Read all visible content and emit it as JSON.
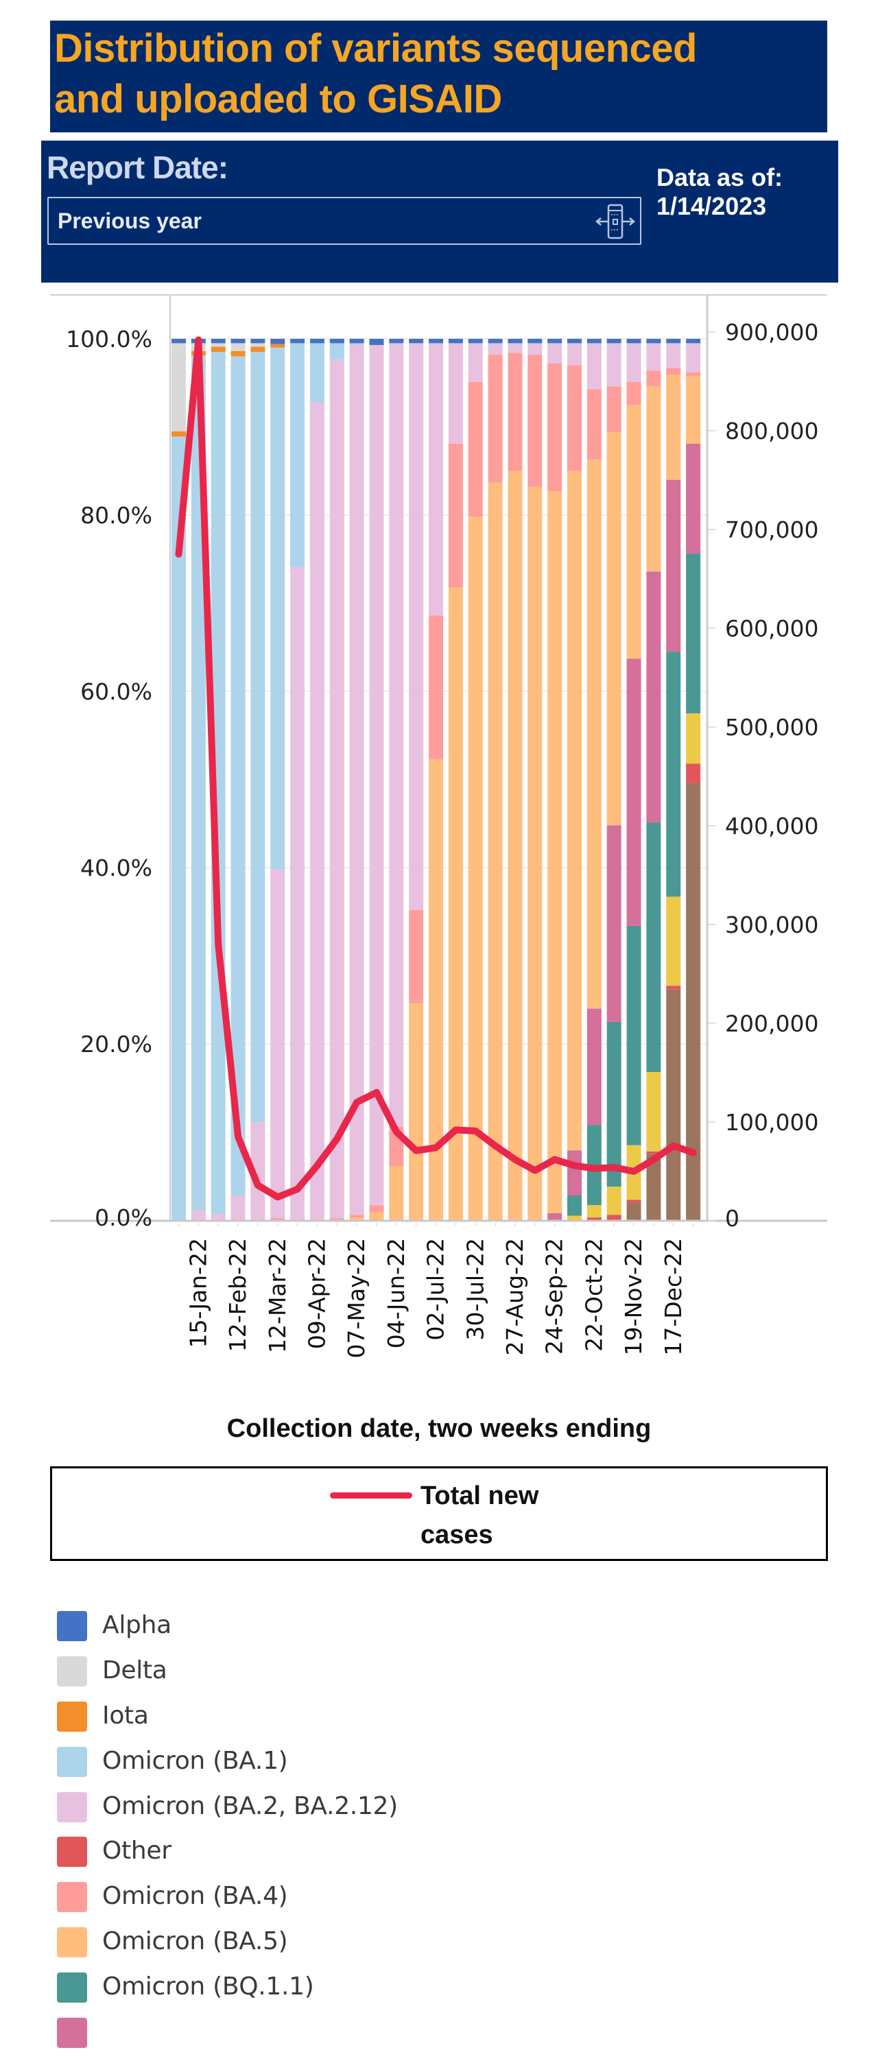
{
  "title": "Distribution of variants sequenced and uploaded to GISAID",
  "title_lines": [
    "Distribution of variants sequenced",
    "and uploaded to GISAID"
  ],
  "filter": {
    "label": "Report Date:",
    "value": "Previous year",
    "icon": "range-slider-icon",
    "as_of_label": "Data as of:",
    "as_of_value": "1/14/2023"
  },
  "colors": {
    "header_bg": "#012a6c",
    "title_text": "#f6a623",
    "line": "#e8274b"
  },
  "chart_data": {
    "type": "bar",
    "stacked": true,
    "combo_line": true,
    "xlabel": "Collection date, two weeks ending",
    "ylim": [
      0,
      100
    ],
    "y2lim": [
      0,
      900000
    ],
    "y_ticks": [
      "0.0%",
      "20.0%",
      "40.0%",
      "60.0%",
      "80.0%",
      "100.0%"
    ],
    "y2_ticks": [
      "0",
      "100,000",
      "200,000",
      "300,000",
      "400,000",
      "500,000",
      "600,000",
      "700,000",
      "800,000",
      "900,000"
    ],
    "x_tick_labels": [
      "15-Jan-22",
      "12-Feb-22",
      "12-Mar-22",
      "09-Apr-22",
      "07-May-22",
      "04-Jun-22",
      "02-Jul-22",
      "30-Jul-22",
      "27-Aug-22",
      "24-Sep-22",
      "22-Oct-22",
      "19-Nov-22",
      "17-Dec-22"
    ],
    "x_tick_every": 2,
    "x_tick_offset": 1,
    "bar_count": 27,
    "grid": true,
    "legend_position": "bottom",
    "series": [
      {
        "name": "",
        "color": "#9c755f",
        "values": [
          0,
          0,
          0,
          0,
          0,
          0,
          0,
          0,
          0,
          0,
          0,
          0,
          0,
          0,
          0,
          0,
          0,
          0,
          0,
          0,
          0,
          0,
          0,
          2.0,
          7.5,
          26.2,
          49.6
        ]
      },
      {
        "name": "Other",
        "color": "#e15759",
        "values": [
          0,
          0,
          0,
          0,
          0,
          0,
          0,
          0,
          0,
          0,
          0,
          0,
          0,
          0,
          0,
          0,
          0,
          0,
          0,
          0,
          0,
          0.3,
          0.6,
          0.3,
          0.3,
          0.4,
          2.2
        ]
      },
      {
        "name": "",
        "color": "#edc948",
        "values": [
          0,
          0,
          0,
          0,
          0,
          0,
          0,
          0,
          0,
          0,
          0,
          0,
          0,
          0,
          0,
          0,
          0,
          0,
          0,
          0,
          0.5,
          1.4,
          3.2,
          6.2,
          9.0,
          10.1,
          5.7
        ]
      },
      {
        "name": "Omicron (BQ.1.1)",
        "color": "#499894",
        "values": [
          0,
          0,
          0,
          0,
          0,
          0,
          0,
          0,
          0,
          0,
          0,
          0,
          0,
          0,
          0,
          0,
          0,
          0,
          0,
          0,
          2.3,
          9.1,
          18.7,
          24.9,
          28.3,
          27.8,
          18.1
        ]
      },
      {
        "name": "",
        "color": "#d4709a",
        "values": [
          0,
          0,
          0,
          0,
          0,
          0,
          0,
          0,
          0,
          0,
          0,
          0,
          0,
          0,
          0,
          0,
          0,
          0,
          0,
          0.8,
          5.1,
          13.2,
          22.3,
          30.3,
          28.5,
          19.5,
          12.5
        ]
      },
      {
        "name": "Omicron (BA.5)",
        "color": "#ffbe7d",
        "values": [
          0,
          0,
          0,
          0,
          0,
          0,
          0,
          0,
          0,
          0.3,
          0.9,
          6.1,
          24.6,
          52.3,
          71.8,
          79.8,
          83.7,
          85.0,
          83.2,
          81.9,
          77.1,
          62.3,
          44.6,
          28.8,
          21.0,
          11.9,
          7.7
        ]
      },
      {
        "name": "Omicron (BA.4)",
        "color": "#ff9d9a",
        "values": [
          0,
          0,
          0,
          0,
          0,
          0.2,
          0,
          0,
          0.2,
          0.3,
          0.8,
          4.5,
          10.6,
          16.3,
          16.3,
          15.3,
          14.5,
          13.4,
          15.0,
          14.5,
          12.0,
          8.0,
          5.2,
          2.6,
          1.8,
          0.8,
          0.4
        ]
      },
      {
        "name": "Omicron (BA.2, BA.2.12)",
        "color": "#e8c1e0",
        "values": [
          0,
          1.1,
          0.7,
          2.8,
          11.1,
          39.6,
          74.1,
          92.8,
          97.5,
          98.7,
          97.6,
          88.9,
          64.3,
          30.9,
          11.4,
          4.4,
          1.3,
          1.1,
          1.3,
          2.3,
          2.5,
          5.2,
          4.9,
          4.4,
          3.1,
          2.8,
          3.3
        ]
      },
      {
        "name": "Omicron (BA.1)",
        "color": "#aed4ec",
        "values": [
          88.9,
          97.0,
          97.8,
          95.2,
          87.4,
          59.2,
          25.4,
          6.7,
          1.8,
          0.2,
          0,
          0,
          0,
          0,
          0,
          0,
          0,
          0,
          0,
          0,
          0,
          0,
          0,
          0,
          0,
          0,
          0
        ]
      },
      {
        "name": "Iota",
        "color": "#f28e2b",
        "values": [
          0.6,
          0.5,
          0.6,
          0.6,
          0.6,
          0.4,
          0,
          0,
          0,
          0,
          0,
          0,
          0,
          0,
          0,
          0,
          0,
          0,
          0,
          0,
          0,
          0,
          0,
          0,
          0,
          0,
          0
        ]
      },
      {
        "name": "Delta",
        "color": "#d9d9d9",
        "values": [
          10.0,
          0.9,
          0.4,
          0.9,
          0.4,
          0,
          0,
          0,
          0,
          0,
          0,
          0,
          0,
          0,
          0,
          0,
          0,
          0,
          0,
          0,
          0,
          0,
          0,
          0,
          0,
          0,
          0
        ]
      },
      {
        "name": "Alpha",
        "color": "#4472c4",
        "values": [
          0.5,
          0.5,
          0.5,
          0.5,
          0.5,
          0.6,
          0.5,
          0.5,
          0.5,
          0.5,
          0.7,
          0.5,
          0.5,
          0.5,
          0.5,
          0.5,
          0.5,
          0.5,
          0.5,
          0.5,
          0.5,
          0.5,
          0.5,
          0.5,
          0.5,
          0.5,
          0.5
        ]
      }
    ],
    "line": {
      "name": "Total new cases",
      "axis": "right",
      "color": "#e8274b",
      "values": [
        675000,
        892000,
        280000,
        85000,
        36000,
        24000,
        32000,
        56000,
        83000,
        120000,
        130000,
        90000,
        71000,
        74000,
        92000,
        91000,
        76000,
        62000,
        51000,
        62000,
        56000,
        53000,
        54000,
        50000,
        62000,
        76000,
        69000
      ]
    }
  },
  "line_legend": {
    "label_line1": "Total new",
    "label_line2": "cases"
  },
  "legend": [
    {
      "label": "Alpha",
      "color": "#4472c4"
    },
    {
      "label": "Delta",
      "color": "#d9d9d9"
    },
    {
      "label": "Iota",
      "color": "#f28e2b"
    },
    {
      "label": "Omicron (BA.1)",
      "color": "#aed4ec"
    },
    {
      "label": "Omicron (BA.2, BA.2.12)",
      "color": "#e8c1e0"
    },
    {
      "label": "Other",
      "color": "#e15759"
    },
    {
      "label": "Omicron (BA.4)",
      "color": "#ff9d9a"
    },
    {
      "label": "Omicron (BA.5)",
      "color": "#ffbe7d"
    },
    {
      "label": "Omicron (BQ.1.1)",
      "color": "#499894"
    },
    {
      "label": "",
      "color": "#d4709a"
    }
  ]
}
